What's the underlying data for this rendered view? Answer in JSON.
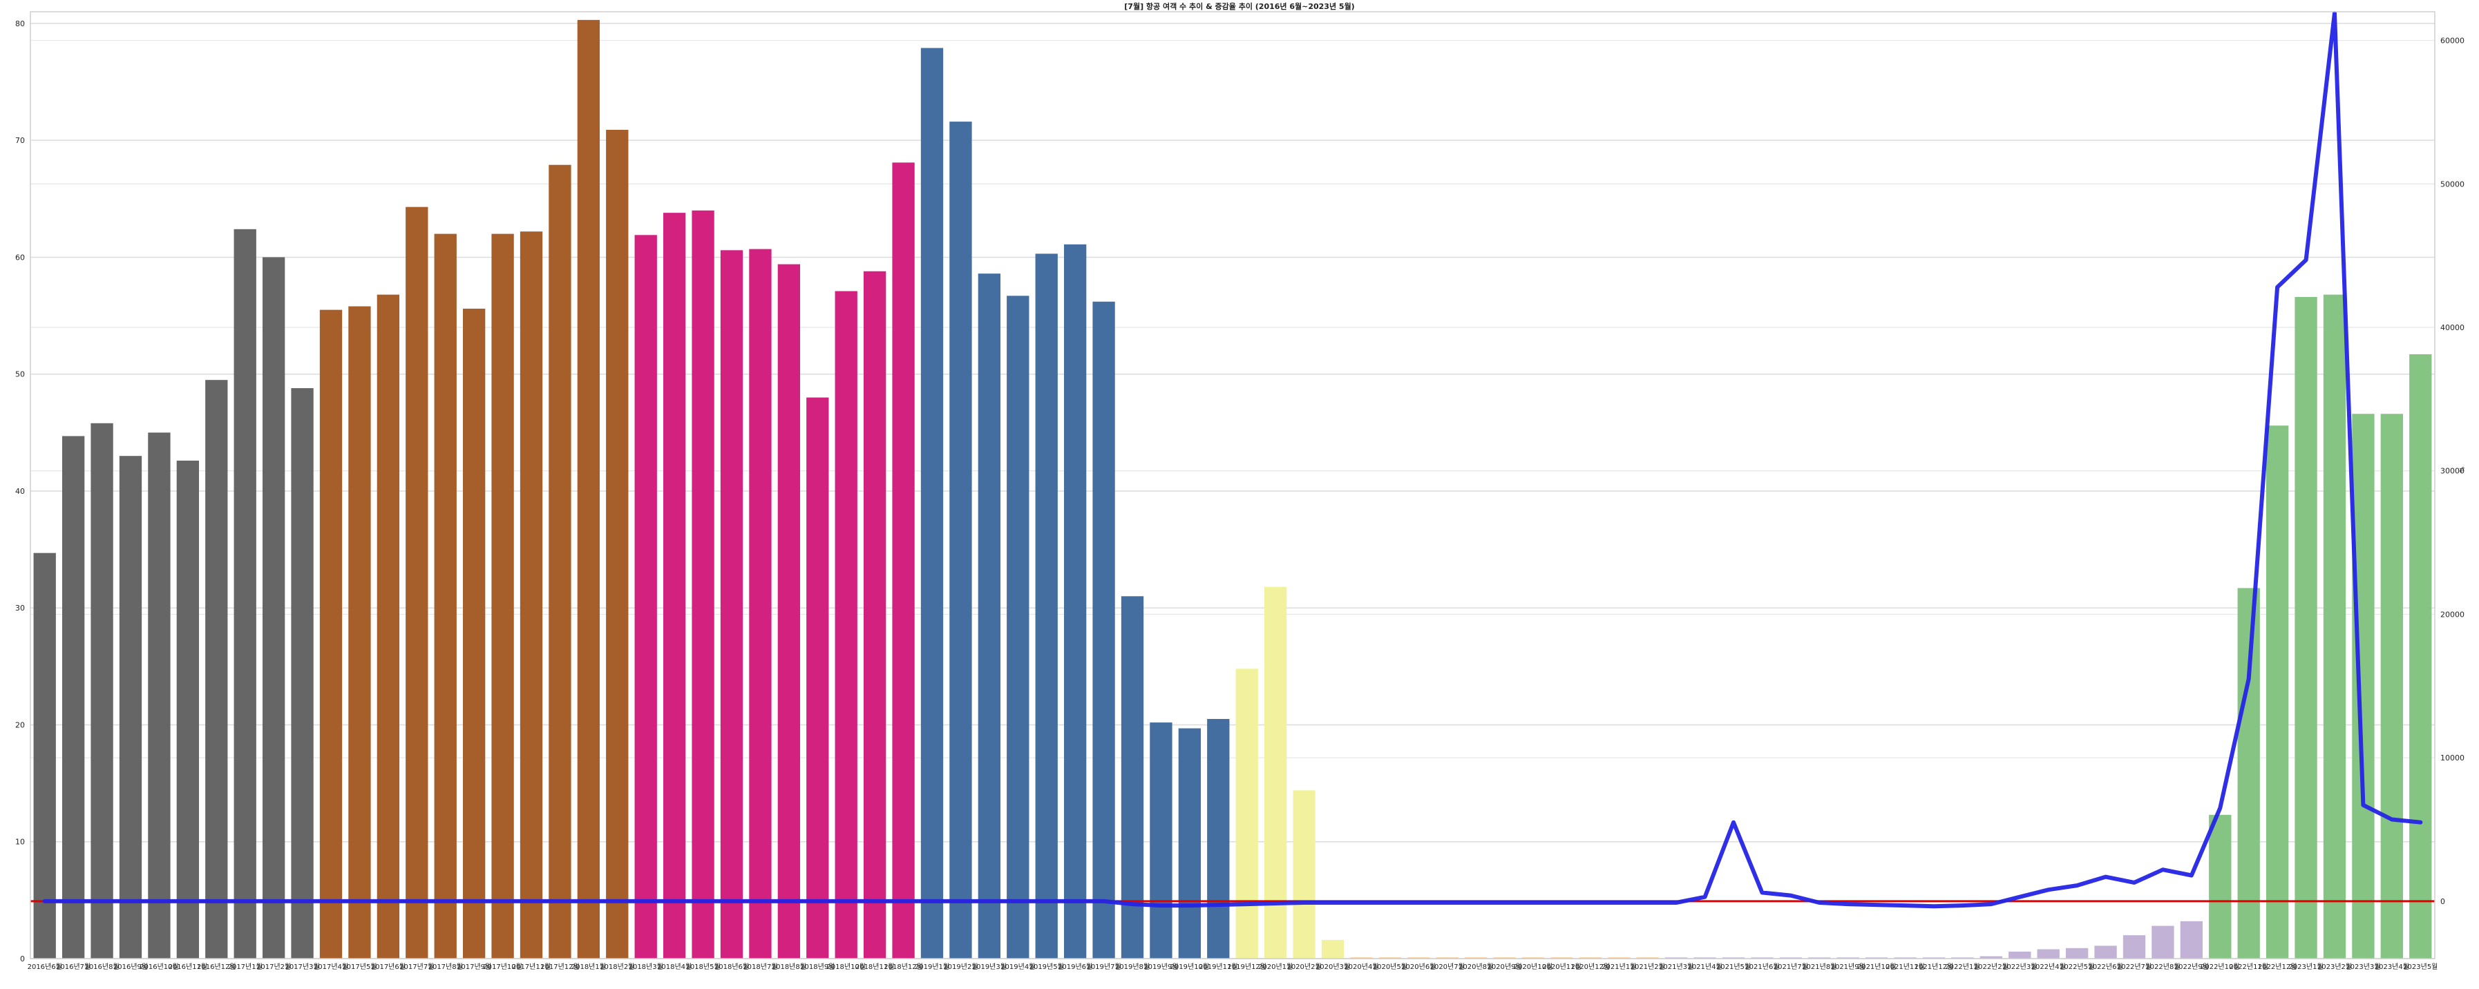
{
  "chart_data": {
    "type": "bar+line",
    "title": "[7월] 항공 여객 수 추이 & 증감율 추이 (2016년 6월~2023년 5월)",
    "xlabel": "",
    "ylabel_left": "",
    "ylabel_right": "%",
    "ylim_left": [
      0,
      81
    ],
    "ylim_right": [
      -4000,
      62000
    ],
    "yticks_left": [
      0,
      10,
      20,
      30,
      40,
      50,
      60,
      70,
      80
    ],
    "yticks_right": [
      0,
      10000,
      20000,
      30000,
      40000,
      50000,
      60000
    ],
    "reference_line": {
      "value": 0,
      "color": "#e00000"
    },
    "grid": true,
    "categories": [
      "2016년6월",
      "2016년7월",
      "2016년8월",
      "2016년9월",
      "2016년10월",
      "2016년11월",
      "2016년12월",
      "2017년1월",
      "2017년2월",
      "2017년3월",
      "2017년4월",
      "2017년5월",
      "2017년6월",
      "2017년7월",
      "2017년8월",
      "2017년9월",
      "2017년10월",
      "2017년11월",
      "2017년12월",
      "2018년1월",
      "2018년2월",
      "2018년3월",
      "2018년4월",
      "2018년5월",
      "2018년6월",
      "2018년7월",
      "2018년8월",
      "2018년9월",
      "2018년10월",
      "2018년11월",
      "2018년12월",
      "2019년1월",
      "2019년2월",
      "2019년3월",
      "2019년4월",
      "2019년5월",
      "2019년6월",
      "2019년7월",
      "2019년8월",
      "2019년9월",
      "2019년10월",
      "2019년11월",
      "2019년12월",
      "2020년1월",
      "2020년2월",
      "2020년3월",
      "2020년4월",
      "2020년5월",
      "2020년6월",
      "2020년7월",
      "2020년8월",
      "2020년9월",
      "2020년10월",
      "2020년11월",
      "2020년12월",
      "2021년1월",
      "2021년2월",
      "2021년3월",
      "2021년4월",
      "2021년5월",
      "2021년6월",
      "2021년7월",
      "2021년8월",
      "2021년9월",
      "2021년10월",
      "2021년11월",
      "2021년12월",
      "2022년1월",
      "2022년2월",
      "2022년3월",
      "2022년4월",
      "2022년5월",
      "2022년6월",
      "2022년7월",
      "2022년8월",
      "2022년9월",
      "2022년10월",
      "2022년11월",
      "2022년12월",
      "2023년1월",
      "2023년2월",
      "2023년3월",
      "2023년4월",
      "2023년5월"
    ],
    "bars": {
      "values": [
        34.7,
        44.7,
        45.8,
        43.0,
        45.0,
        42.6,
        49.5,
        62.4,
        60.0,
        48.8,
        55.5,
        55.8,
        56.8,
        64.3,
        62.0,
        55.6,
        62.0,
        62.2,
        67.9,
        80.3,
        70.9,
        61.9,
        63.8,
        64.0,
        60.6,
        60.7,
        59.4,
        48.0,
        57.1,
        58.8,
        68.1,
        77.9,
        71.6,
        58.6,
        56.7,
        60.3,
        61.1,
        56.2,
        31.0,
        20.2,
        19.7,
        20.5,
        24.8,
        31.8,
        14.4,
        1.6,
        0.1,
        0.1,
        0.1,
        0.1,
        0.1,
        0.1,
        0.1,
        0.1,
        0.1,
        0.1,
        0.1,
        0.1,
        0.1,
        0.1,
        0.1,
        0.1,
        0.1,
        0.1,
        0.1,
        0.1,
        0.1,
        0.1,
        0.2,
        0.6,
        0.8,
        0.9,
        1.1,
        2.0,
        2.8,
        3.2,
        12.3,
        31.7,
        45.6,
        56.6,
        56.8,
        46.6,
        46.6,
        51.7
      ],
      "colors": [
        "#666666",
        "#666666",
        "#666666",
        "#666666",
        "#666666",
        "#666666",
        "#666666",
        "#666666",
        "#666666",
        "#666666",
        "#a65f2b",
        "#a65f2b",
        "#a65f2b",
        "#a65f2b",
        "#a65f2b",
        "#a65f2b",
        "#a65f2b",
        "#a65f2b",
        "#a65f2b",
        "#a65f2b",
        "#a65f2b",
        "#d3217f",
        "#d3217f",
        "#d3217f",
        "#d3217f",
        "#d3217f",
        "#d3217f",
        "#d3217f",
        "#d3217f",
        "#d3217f",
        "#d3217f",
        "#456ea0",
        "#456ea0",
        "#456ea0",
        "#456ea0",
        "#456ea0",
        "#456ea0",
        "#456ea0",
        "#456ea0",
        "#456ea0",
        "#456ea0",
        "#456ea0",
        "#f2f29e",
        "#f2f29e",
        "#f2f29e",
        "#f2f29e",
        "#f6c48a",
        "#f6c48a",
        "#f6c48a",
        "#f6c48a",
        "#f6c48a",
        "#f6c48a",
        "#f6c48a",
        "#f6c48a",
        "#f6c48a",
        "#f6c48a",
        "#f6c48a",
        "#c1b2d6",
        "#c1b2d6",
        "#c1b2d6",
        "#c1b2d6",
        "#c1b2d6",
        "#c1b2d6",
        "#c1b2d6",
        "#c1b2d6",
        "#c1b2d6",
        "#c1b2d6",
        "#c1b2d6",
        "#c1b2d6",
        "#c1b2d6",
        "#c1b2d6",
        "#c1b2d6",
        "#c1b2d6",
        "#c1b2d6",
        "#c1b2d6",
        "#c1b2d6",
        "#86c484",
        "#86c484",
        "#86c484",
        "#86c484",
        "#86c484",
        "#86c484",
        "#86c484",
        "#86c484"
      ]
    },
    "line": {
      "color": "#2424e6",
      "values": [
        0,
        0,
        0,
        0,
        0,
        0,
        0,
        0,
        0,
        0,
        0,
        0,
        0,
        0,
        0,
        0,
        0,
        0,
        0,
        0,
        0,
        0,
        0,
        0,
        0,
        0,
        0,
        0,
        0,
        0,
        0,
        0,
        0,
        0,
        0,
        0,
        0,
        0,
        -200,
        -300,
        -300,
        -250,
        -200,
        -150,
        -100,
        -100,
        -100,
        -100,
        -100,
        -100,
        -100,
        -100,
        -100,
        -100,
        -100,
        -100,
        -100,
        -100,
        300,
        5500,
        600,
        400,
        -100,
        -200,
        -250,
        -300,
        -350,
        -300,
        -200,
        300,
        800,
        1100,
        1700,
        1300,
        2200,
        1800,
        6500,
        15500,
        42800,
        44700,
        61900,
        6700,
        5700,
        5500
      ]
    },
    "reference_line_right": {
      "color": "#e00000",
      "value": 0
    }
  }
}
